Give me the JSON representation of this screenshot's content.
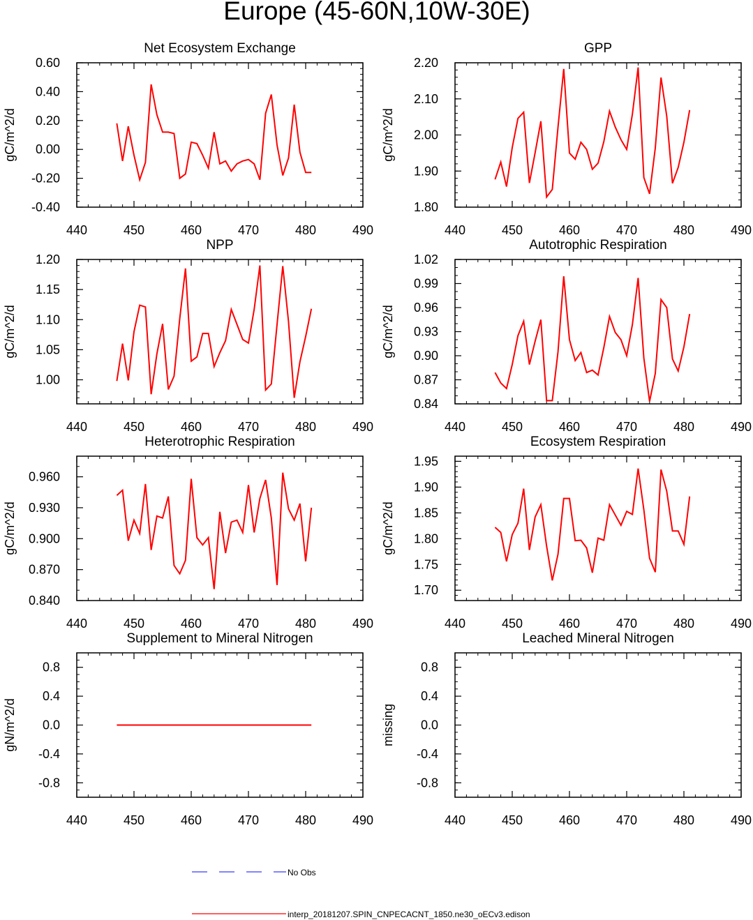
{
  "figure_title": "Europe (45-60N,10W-30E)",
  "legend": [
    {
      "label": "No Obs",
      "color": "#3a3aff",
      "dash": true
    },
    {
      "label": "interp_20181207.SPIN_CNPECACNT_1850.ne30_oECv3.edison",
      "color": "#ff0000",
      "dash": false
    }
  ],
  "chart_data": [
    {
      "type": "line",
      "title": "Net Ecosystem Exchange",
      "xlabel": "",
      "ylabel": "gC/m^2/d",
      "xlim": [
        440,
        490
      ],
      "ylim": [
        -0.4,
        0.6
      ],
      "xticks": [
        440,
        450,
        460,
        470,
        480,
        490
      ],
      "xtick_labels": [
        "440",
        "450",
        "460",
        "470",
        "480",
        "490"
      ],
      "yticks": [
        -0.4,
        -0.2,
        0.0,
        0.2,
        0.4,
        0.6
      ],
      "ytick_labels": [
        "-0.40",
        "-0.20",
        "0.00",
        "0.20",
        "0.40",
        "0.60"
      ],
      "yminor": 0.04,
      "series": [
        {
          "name": "interp_20181207.SPIN_CNPECACNT_1850.ne30_oECv3.edison",
          "color": "#ff0000",
          "x": [
            447,
            448,
            449,
            450,
            451,
            452,
            453,
            454,
            455,
            456,
            457,
            458,
            459,
            460,
            461,
            462,
            463,
            464,
            465,
            466,
            467,
            468,
            469,
            470,
            471,
            472,
            473,
            474,
            475,
            476,
            477,
            478,
            479,
            480,
            481
          ],
          "values": [
            0.18,
            -0.08,
            0.16,
            -0.04,
            -0.21,
            -0.09,
            0.45,
            0.24,
            0.12,
            0.12,
            0.11,
            -0.2,
            -0.17,
            0.05,
            0.04,
            -0.04,
            -0.13,
            0.12,
            -0.1,
            -0.08,
            -0.15,
            -0.1,
            -0.08,
            -0.07,
            -0.1,
            -0.21,
            0.25,
            0.38,
            0.03,
            -0.18,
            -0.06,
            0.31,
            -0.02,
            -0.16,
            -0.16
          ]
        }
      ]
    },
    {
      "type": "line",
      "title": "GPP",
      "xlabel": "",
      "ylabel": "gC/m^2/d",
      "xlim": [
        440,
        490
      ],
      "ylim": [
        1.8,
        2.2
      ],
      "xticks": [
        440,
        450,
        460,
        470,
        480,
        490
      ],
      "xtick_labels": [
        "440",
        "450",
        "460",
        "470",
        "480",
        "490"
      ],
      "yticks": [
        1.8,
        1.9,
        2.0,
        2.1,
        2.2
      ],
      "ytick_labels": [
        "1.80",
        "1.90",
        "2.00",
        "2.10",
        "2.20"
      ],
      "yminor": 0.02,
      "series": [
        {
          "name": "interp_20181207.SPIN_CNPECACNT_1850.ne30_oECv3.edison",
          "color": "#ff0000",
          "x": [
            447,
            448,
            449,
            450,
            451,
            452,
            453,
            454,
            455,
            456,
            457,
            458,
            459,
            460,
            461,
            462,
            463,
            464,
            465,
            466,
            467,
            468,
            469,
            470,
            471,
            472,
            473,
            474,
            475,
            476,
            477,
            478,
            479,
            480,
            481
          ],
          "values": [
            1.877,
            1.925,
            1.857,
            1.965,
            2.046,
            2.063,
            1.867,
            1.951,
            2.038,
            1.828,
            1.849,
            2.022,
            2.183,
            1.95,
            1.933,
            1.98,
            1.96,
            1.905,
            1.922,
            1.981,
            2.066,
            2.022,
            1.987,
            1.96,
            2.058,
            2.187,
            1.882,
            1.837,
            1.964,
            2.159,
            2.052,
            1.866,
            1.91,
            1.98,
            2.069
          ]
        }
      ]
    },
    {
      "type": "line",
      "title": "NPP",
      "xlabel": "",
      "ylabel": "gC/m^2/d",
      "xlim": [
        440,
        490
      ],
      "ylim": [
        0.96,
        1.2
      ],
      "xticks": [
        440,
        450,
        460,
        470,
        480,
        490
      ],
      "xtick_labels": [
        "440",
        "450",
        "460",
        "470",
        "480",
        "490"
      ],
      "yticks": [
        1.0,
        1.05,
        1.1,
        1.15,
        1.2
      ],
      "ytick_labels": [
        "1.00",
        "1.05",
        "1.10",
        "1.15",
        "1.20"
      ],
      "yminor": 0.01,
      "series": [
        {
          "name": "interp_20181207.SPIN_CNPECACNT_1850.ne30_oECv3.edison",
          "color": "#ff0000",
          "x": [
            447,
            448,
            449,
            450,
            451,
            452,
            453,
            454,
            455,
            456,
            457,
            458,
            459,
            460,
            461,
            462,
            463,
            464,
            465,
            466,
            467,
            468,
            469,
            470,
            471,
            472,
            473,
            474,
            475,
            476,
            477,
            478,
            479,
            480,
            481
          ],
          "values": [
            0.998,
            1.06,
            0.999,
            1.08,
            1.124,
            1.121,
            0.976,
            1.043,
            1.093,
            0.984,
            1.006,
            1.102,
            1.185,
            1.031,
            1.038,
            1.077,
            1.077,
            1.022,
            1.045,
            1.065,
            1.117,
            1.092,
            1.067,
            1.061,
            1.117,
            1.19,
            0.983,
            0.993,
            1.092,
            1.189,
            1.097,
            0.97,
            1.03,
            1.072,
            1.118
          ]
        }
      ]
    },
    {
      "type": "line",
      "title": "Autotrophic Respiration",
      "xlabel": "",
      "ylabel": "gC/m^2/d",
      "xlim": [
        440,
        490
      ],
      "ylim": [
        0.84,
        1.02
      ],
      "xticks": [
        440,
        450,
        460,
        470,
        480,
        490
      ],
      "xtick_labels": [
        "440",
        "450",
        "460",
        "470",
        "480",
        "490"
      ],
      "yticks": [
        0.84,
        0.87,
        0.9,
        0.93,
        0.96,
        0.99,
        1.02
      ],
      "ytick_labels": [
        "0.84",
        "0.87",
        "0.90",
        "0.93",
        "0.96",
        "0.99",
        "1.02"
      ],
      "yminor": 0.01,
      "series": [
        {
          "name": "interp_20181207.SPIN_CNPECACNT_1850.ne30_oECv3.edison",
          "color": "#ff0000",
          "x": [
            447,
            448,
            449,
            450,
            451,
            452,
            453,
            454,
            455,
            456,
            457,
            458,
            459,
            460,
            461,
            462,
            463,
            464,
            465,
            466,
            467,
            468,
            469,
            470,
            471,
            472,
            473,
            474,
            475,
            476,
            477,
            478,
            479,
            480,
            481
          ],
          "values": [
            0.879,
            0.866,
            0.859,
            0.889,
            0.925,
            0.943,
            0.889,
            0.918,
            0.945,
            0.844,
            0.844,
            0.905,
            0.999,
            0.92,
            0.894,
            0.904,
            0.879,
            0.882,
            0.876,
            0.91,
            0.949,
            0.929,
            0.92,
            0.9,
            0.939,
            0.997,
            0.897,
            0.843,
            0.878,
            0.97,
            0.96,
            0.896,
            0.881,
            0.911,
            0.952
          ]
        }
      ]
    },
    {
      "type": "line",
      "title": "Heterotrophic Respiration",
      "xlabel": "",
      "ylabel": "gC/m^2/d",
      "xlim": [
        440,
        490
      ],
      "ylim": [
        0.84,
        0.98
      ],
      "xticks": [
        440,
        450,
        460,
        470,
        480,
        490
      ],
      "xtick_labels": [
        "440",
        "450",
        "460",
        "470",
        "480",
        "490"
      ],
      "yticks": [
        0.84,
        0.87,
        0.9,
        0.93,
        0.96
      ],
      "ytick_labels": [
        "0.840",
        "0.870",
        "0.900",
        "0.930",
        "0.960"
      ],
      "yminor": 0.01,
      "series": [
        {
          "name": "interp_20181207.SPIN_CNPECACNT_1850.ne30_oECv3.edison",
          "color": "#ff0000",
          "x": [
            447,
            448,
            449,
            450,
            451,
            452,
            453,
            454,
            455,
            456,
            457,
            458,
            459,
            460,
            461,
            462,
            463,
            464,
            465,
            466,
            467,
            468,
            469,
            470,
            471,
            472,
            473,
            474,
            475,
            476,
            477,
            478,
            479,
            480,
            481
          ],
          "values": [
            0.942,
            0.947,
            0.898,
            0.918,
            0.905,
            0.953,
            0.889,
            0.922,
            0.92,
            0.941,
            0.874,
            0.866,
            0.879,
            0.958,
            0.901,
            0.894,
            0.901,
            0.851,
            0.926,
            0.886,
            0.916,
            0.918,
            0.906,
            0.952,
            0.906,
            0.939,
            0.957,
            0.92,
            0.855,
            0.964,
            0.929,
            0.918,
            0.934,
            0.878,
            0.93
          ]
        }
      ]
    },
    {
      "type": "line",
      "title": "Ecosystem Respiration",
      "xlabel": "",
      "ylabel": "gC/m^2/d",
      "xlim": [
        440,
        490
      ],
      "ylim": [
        1.68,
        1.96
      ],
      "xticks": [
        440,
        450,
        460,
        470,
        480,
        490
      ],
      "xtick_labels": [
        "440",
        "450",
        "460",
        "470",
        "480",
        "490"
      ],
      "yticks": [
        1.7,
        1.75,
        1.8,
        1.85,
        1.9,
        1.95
      ],
      "ytick_labels": [
        "1.70",
        "1.75",
        "1.80",
        "1.85",
        "1.90",
        "1.95"
      ],
      "yminor": 0.01,
      "series": [
        {
          "name": "interp_20181207.SPIN_CNPECACNT_1850.ne30_oECv3.edison",
          "color": "#ff0000",
          "x": [
            447,
            448,
            449,
            450,
            451,
            452,
            453,
            454,
            455,
            456,
            457,
            458,
            459,
            460,
            461,
            462,
            463,
            464,
            465,
            466,
            467,
            468,
            469,
            470,
            471,
            472,
            473,
            474,
            475,
            476,
            477,
            478,
            479,
            480,
            481
          ],
          "values": [
            1.822,
            1.812,
            1.756,
            1.808,
            1.83,
            1.897,
            1.778,
            1.842,
            1.866,
            1.786,
            1.719,
            1.77,
            1.878,
            1.878,
            1.796,
            1.797,
            1.782,
            1.734,
            1.801,
            1.797,
            1.866,
            1.846,
            1.826,
            1.853,
            1.847,
            1.936,
            1.856,
            1.762,
            1.735,
            1.934,
            1.892,
            1.815,
            1.815,
            1.789,
            1.882
          ]
        }
      ]
    },
    {
      "type": "line",
      "title": "Supplement to Mineral Nitrogen",
      "xlabel": "",
      "ylabel": "gN/m^2/d",
      "xlim": [
        440,
        490
      ],
      "ylim": [
        -1.0,
        1.0
      ],
      "xticks": [
        440,
        450,
        460,
        470,
        480,
        490
      ],
      "xtick_labels": [
        "440",
        "450",
        "460",
        "470",
        "480",
        "490"
      ],
      "yticks": [
        -0.8,
        -0.4,
        0.0,
        0.4,
        0.8
      ],
      "ytick_labels": [
        "-0.8",
        "-0.4",
        "0.0",
        "0.4",
        "0.8"
      ],
      "yminor": 0.1,
      "series": [
        {
          "name": "interp_20181207.SPIN_CNPECACNT_1850.ne30_oECv3.edison",
          "color": "#ff0000",
          "x": [
            447,
            481
          ],
          "values": [
            0.0,
            0.0
          ]
        }
      ]
    },
    {
      "type": "line",
      "title": "Leached Mineral Nitrogen",
      "xlabel": "",
      "ylabel": "missing",
      "xlim": [
        440,
        490
      ],
      "ylim": [
        -1.0,
        1.0
      ],
      "xticks": [
        440,
        450,
        460,
        470,
        480,
        490
      ],
      "xtick_labels": [
        "440",
        "450",
        "460",
        "470",
        "480",
        "490"
      ],
      "yticks": [
        -0.8,
        -0.4,
        0.0,
        0.4,
        0.8
      ],
      "ytick_labels": [
        "-0.8",
        "-0.4",
        "0.0",
        "0.4",
        "0.8"
      ],
      "yminor": 0.1,
      "series": []
    }
  ]
}
